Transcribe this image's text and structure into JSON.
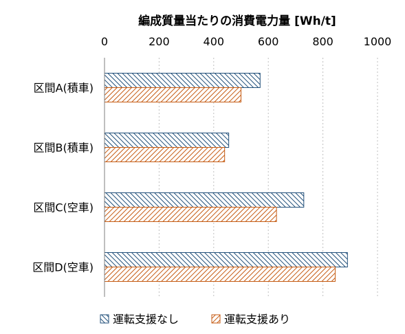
{
  "chart_data": {
    "type": "bar",
    "orientation": "horizontal",
    "title": "編成質量当たりの消費電力量 [Wh/t]",
    "categories": [
      "区間A(積車)",
      "区間B(積車)",
      "区間C(空車)",
      "区間D(空車)"
    ],
    "series": [
      {
        "name": "運転支援なし",
        "values": [
          570,
          455,
          730,
          890
        ],
        "color": "#a9d2e0",
        "stripe": "#1f4e79"
      },
      {
        "name": "運転支援あり",
        "values": [
          500,
          440,
          630,
          845
        ],
        "color": "#f6c9a0",
        "stripe": "#c55a11"
      }
    ],
    "xlim": [
      0,
      1000
    ],
    "xticks": [
      0,
      200,
      400,
      600,
      800,
      1000
    ],
    "xaxis_position": "top",
    "grid": "vertical dotted",
    "legend_position": "bottom"
  }
}
